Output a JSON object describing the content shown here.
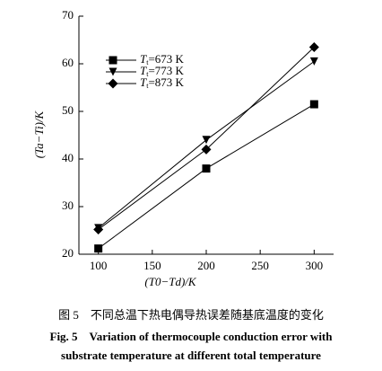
{
  "chart_data": {
    "type": "line",
    "x": [
      100,
      200,
      300
    ],
    "series": [
      {
        "name": "Tt=673 K",
        "color": "#000000",
        "marker": "square",
        "values": [
          21.2,
          38.0,
          51.5
        ]
      },
      {
        "name": "Tt=773 K",
        "color": "#000000",
        "marker": "triangle-down",
        "values": [
          25.5,
          44.0,
          60.5
        ]
      },
      {
        "name": "Tt=873 K",
        "color": "#000000",
        "marker": "diamond",
        "values": [
          25.2,
          42.0,
          63.5
        ]
      }
    ],
    "xlabel": "(T0−Td)/K",
    "ylabel": "(Ta−Ti)/K",
    "xlim": [
      82,
      318
    ],
    "xticks": [
      100,
      150,
      200,
      250,
      300
    ],
    "ylim": [
      20,
      70
    ],
    "yticks": [
      20,
      30,
      40,
      50,
      60,
      70
    ],
    "grid": false,
    "legend": "upper left"
  },
  "caption": {
    "cn": "图 5　不同总温下热电偶导热误差随基底温度的变化",
    "en_line1": "Fig. 5　Variation of thermocouple conduction error with",
    "en_line2": "substrate temperature at different total temperature"
  }
}
